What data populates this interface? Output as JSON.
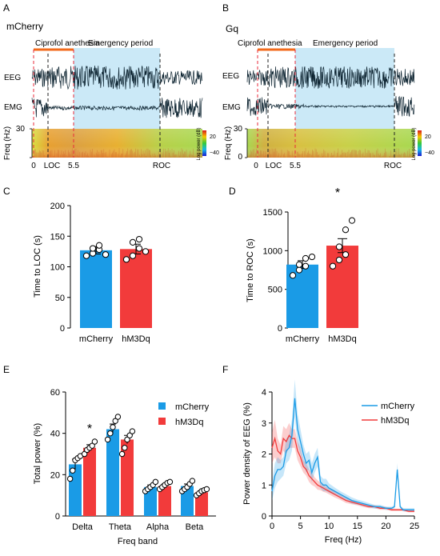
{
  "panel_letters": {
    "a": "A",
    "b": "B",
    "c": "C",
    "d": "D",
    "e": "E",
    "f": "F"
  },
  "colors": {
    "mcherry": "#1a9be6",
    "hm3dq": "#f23b3b",
    "shade": "#cbe9f7",
    "orange": "#f26a1b",
    "red_dash": "#e8293a"
  },
  "panelA": {
    "group": "mCherry",
    "phase1": "Ciprofol anethesia",
    "phase2": "Emergency period",
    "eeg": "EEG",
    "emg": "EMG",
    "freq_label": "Freq (Hz)",
    "f_max": "30",
    "f_min": "0",
    "ticks": [
      "0",
      "LOC",
      "5.5",
      "ROC"
    ],
    "cbar_label": "Log power (dB)",
    "cbar_top": "20",
    "cbar_bottom": "−40"
  },
  "panelB": {
    "group": "Gq",
    "phase1": "Ciprofol anethesia",
    "phase2": "Emergency period",
    "eeg": "EEG",
    "emg": "EMG",
    "freq_label": "Freq (Hz)",
    "f_max": "30",
    "f_min": "0",
    "ticks": [
      "0",
      "LOC",
      "5.5",
      "ROC"
    ],
    "cbar_label": "Log power (dB)",
    "cbar_top": "20",
    "cbar_bottom": "−40"
  },
  "chart_data": [
    {
      "id": "C",
      "type": "bar",
      "categories": [
        "mCherry",
        "hM3Dq"
      ],
      "values": [
        127,
        129
      ],
      "sem": [
        6,
        8
      ],
      "points": [
        [
          118,
          122,
          128,
          130,
          135,
          120
        ],
        [
          112,
          118,
          130,
          140,
          145,
          125
        ]
      ],
      "ylabel": "Time to LOC (s)",
      "ylim": [
        0,
        200
      ],
      "yticks": [
        "0",
        "50",
        "100",
        "150",
        "200"
      ]
    },
    {
      "id": "D",
      "type": "bar",
      "categories": [
        "mCherry",
        "hM3Dq"
      ],
      "values": [
        820,
        1065
      ],
      "sem": [
        50,
        90
      ],
      "points": [
        [
          680,
          750,
          800,
          820,
          900,
          920
        ],
        [
          800,
          880,
          950,
          1050,
          1270,
          1390
        ]
      ],
      "ylabel": "Time to ROC (s)",
      "ylim": [
        0,
        1500
      ],
      "yticks": [
        "0",
        "500",
        "1000",
        "1500"
      ],
      "annotation": "*"
    },
    {
      "id": "E",
      "type": "bar",
      "categories": [
        "Delta",
        "Theta",
        "Alpha",
        "Beta"
      ],
      "series": [
        {
          "name": "mCherry",
          "values": [
            25,
            42,
            14,
            14.5
          ],
          "sem": [
            2.5,
            2.5,
            1,
            1
          ],
          "points": [
            [
              18,
              22,
              27,
              28,
              29
            ],
            [
              37,
              40,
              43,
              46,
              48
            ],
            [
              12,
              13,
              14,
              15,
              16.5
            ],
            [
              12,
              13,
              14,
              15.5,
              17
            ]
          ]
        },
        {
          "name": "hM3Dq",
          "values": [
            33,
            37,
            14.5,
            11.5
          ],
          "sem": [
            1.5,
            2,
            1,
            0.8
          ],
          "points": [
            [
              30,
              32,
              33,
              34,
              36
            ],
            [
              30,
              33,
              37,
              39,
              41
            ],
            [
              13,
              14,
              15,
              16,
              16.5
            ],
            [
              10,
              11,
              12,
              12.5,
              13
            ]
          ]
        }
      ],
      "xlabel": "Freq band",
      "ylabel": "Total power (%)",
      "ylim": [
        0,
        60
      ],
      "yticks": [
        "0",
        "20",
        "40",
        "60"
      ],
      "annotation": {
        "category": "Delta",
        "text": "*"
      },
      "legend": "top-right"
    },
    {
      "id": "F",
      "type": "line",
      "series": [
        {
          "name": "mCherry",
          "x": [
            0,
            0.5,
            1,
            1.5,
            2,
            2.5,
            3,
            3.5,
            4,
            4.5,
            5,
            5.5,
            6,
            6.5,
            7,
            7.5,
            8,
            8.5,
            9,
            9.5,
            10,
            11,
            12,
            13,
            14,
            15,
            16,
            17,
            18,
            19,
            20,
            21,
            21.5,
            22,
            22.5,
            23,
            24,
            25
          ],
          "y": [
            0.8,
            1.3,
            1.5,
            1.5,
            1.6,
            2.1,
            2.2,
            2.6,
            3.8,
            2.8,
            2.4,
            2.0,
            1.7,
            1.8,
            1.4,
            1.7,
            1.9,
            1.1,
            1.0,
            1.0,
            0.9,
            0.8,
            0.7,
            0.6,
            0.5,
            0.45,
            0.4,
            0.35,
            0.3,
            0.3,
            0.25,
            0.25,
            0.3,
            1.5,
            0.3,
            0.2,
            0.2,
            0.2
          ],
          "err": [
            0.3,
            0.4,
            0.4,
            0.3,
            0.3,
            0.4,
            0.4,
            0.5,
            0.6,
            0.5,
            0.4,
            0.3,
            0.3,
            0.3,
            0.3,
            0.3,
            0.3,
            0.2,
            0.2,
            0.2,
            0.15,
            0.12,
            0.1,
            0.1,
            0.1,
            0.08,
            0.08,
            0.07,
            0.06,
            0.06,
            0.05,
            0.05,
            0.05,
            0.2,
            0.05,
            0.05,
            0.05,
            0.05
          ]
        },
        {
          "name": "hM3Dq",
          "x": [
            0,
            0.5,
            1,
            1.5,
            2,
            2.5,
            3,
            3.5,
            4,
            4.5,
            5,
            5.5,
            6,
            6.5,
            7,
            7.5,
            8,
            8.5,
            9,
            9.5,
            10,
            11,
            12,
            13,
            14,
            15,
            16,
            17,
            18,
            19,
            20,
            21,
            22,
            23,
            24,
            25
          ],
          "y": [
            2.2,
            2.5,
            2.1,
            2.0,
            2.5,
            2.4,
            2.6,
            2.5,
            2.5,
            2.1,
            1.9,
            1.6,
            1.5,
            1.3,
            1.2,
            1.1,
            1.0,
            0.95,
            0.9,
            0.85,
            0.8,
            0.7,
            0.6,
            0.5,
            0.45,
            0.4,
            0.35,
            0.3,
            0.3,
            0.25,
            0.25,
            0.2,
            0.2,
            0.2,
            0.15,
            0.15
          ],
          "err": [
            0.5,
            0.6,
            0.4,
            0.3,
            0.4,
            0.4,
            0.4,
            0.3,
            0.3,
            0.3,
            0.3,
            0.2,
            0.2,
            0.2,
            0.2,
            0.15,
            0.15,
            0.12,
            0.12,
            0.1,
            0.1,
            0.1,
            0.08,
            0.08,
            0.07,
            0.06,
            0.06,
            0.05,
            0.05,
            0.05,
            0.05,
            0.04,
            0.04,
            0.04,
            0.03,
            0.03
          ]
        }
      ],
      "xlabel": "Freq (Hz)",
      "ylabel": "Power density of EEG (%)",
      "xlim": [
        0,
        25
      ],
      "ylim": [
        0,
        4
      ],
      "xticks": [
        "0",
        "5",
        "10",
        "15",
        "20",
        "25"
      ],
      "yticks": [
        "0",
        "1",
        "2",
        "3",
        "4"
      ],
      "legend": "top-right"
    }
  ]
}
